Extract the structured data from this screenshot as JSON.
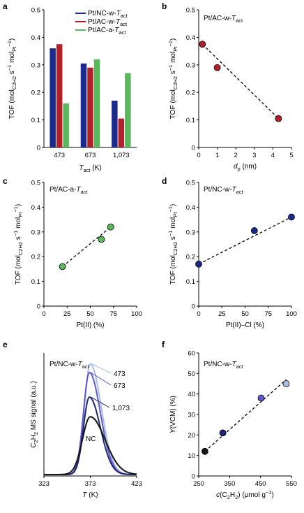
{
  "chart_data": [
    {
      "panel": "a",
      "type": "bar",
      "xlabel": "T_act (K)",
      "ylabel": "TOF (mol_C2H2 s−1 mol_Pt−1)",
      "categories": [
        "473",
        "673",
        "1,073"
      ],
      "ylim": [
        0,
        0.5
      ],
      "yticks": [
        "0",
        "0.1",
        "0.2",
        "0.3",
        "0.4",
        "0.5"
      ],
      "series": [
        {
          "name": "Pt/NC-w-T_act",
          "color": "#1c2a8c",
          "values": [
            0.36,
            0.305,
            0.17
          ]
        },
        {
          "name": "Pt/AC-w-T_act",
          "color": "#b3202a",
          "values": [
            0.375,
            0.29,
            0.105
          ]
        },
        {
          "name": "Pt/AC-a-T_act",
          "color": "#5cb85c",
          "values": [
            0.16,
            0.32,
            0.27
          ]
        }
      ],
      "legend": "top-right"
    },
    {
      "panel": "b",
      "type": "scatter",
      "title": "Pt/AC-w-T_act",
      "xlabel": "d_p (nm)",
      "ylabel": "TOF (mol_C2H2 s−1 mol_Pt−1)",
      "xlim": [
        0,
        5
      ],
      "ylim": [
        0,
        0.5
      ],
      "xticks": [
        "0",
        "1",
        "2",
        "3",
        "4",
        "5"
      ],
      "yticks": [
        "0",
        "0.1",
        "0.2",
        "0.3",
        "0.4",
        "0.5"
      ],
      "color": "#b3202a",
      "x": [
        0.2,
        1.0,
        4.3
      ],
      "y": [
        0.375,
        0.29,
        0.105
      ],
      "fit": {
        "x": [
          0.2,
          4.3
        ],
        "y": [
          0.375,
          0.105
        ]
      }
    },
    {
      "panel": "c",
      "type": "scatter",
      "title": "Pt/AC-a-T_act",
      "xlabel": "Pt(II) (%)",
      "ylabel": "TOF (mol_C2H2 s−1 mol_Pt−1)",
      "xlim": [
        0,
        100
      ],
      "ylim": [
        0,
        0.5
      ],
      "xticks": [
        "0",
        "25",
        "50",
        "75",
        "100"
      ],
      "yticks": [
        "0",
        "0.1",
        "0.2",
        "0.3",
        "0.4",
        "0.5"
      ],
      "color": "#5cb85c",
      "x": [
        20,
        62,
        72
      ],
      "y": [
        0.16,
        0.27,
        0.32
      ],
      "fit": {
        "x": [
          20,
          72
        ],
        "y": [
          0.16,
          0.32
        ]
      }
    },
    {
      "panel": "d",
      "type": "scatter",
      "title": "Pt/NC-w-T_act",
      "xlabel": "Pt(II)–Cl (%)",
      "ylabel": "TOF (mol_C2H2 s−1 mol_Pt−1)",
      "xlim": [
        0,
        100
      ],
      "ylim": [
        0,
        0.5
      ],
      "xticks": [
        "0",
        "25",
        "50",
        "75",
        "100"
      ],
      "yticks": [
        "0",
        "0.1",
        "0.2",
        "0.3",
        "0.4",
        "0.5"
      ],
      "color": "#1c2a8c",
      "x": [
        0,
        60,
        100
      ],
      "y": [
        0.17,
        0.305,
        0.36
      ],
      "fit": {
        "x": [
          0,
          100
        ],
        "y": [
          0.17,
          0.36
        ]
      }
    },
    {
      "panel": "e",
      "type": "line",
      "title": "Pt/NC-w-T_act",
      "xlabel": "T (K)",
      "ylabel": "C2H2 MS signal (a.u.)",
      "xlim": [
        323,
        423
      ],
      "xticks": [
        "323",
        "373",
        "423"
      ],
      "ylim": [
        0,
        1
      ],
      "curve_x_start": 340,
      "series": [
        {
          "name": "473",
          "color": "#a7bfe4",
          "peak_x": 373,
          "peak_y": 0.9,
          "width": 12
        },
        {
          "name": "673",
          "color": "#5f57c9",
          "peak_x": 372,
          "peak_y": 0.83,
          "width": 12
        },
        {
          "name": "1,073",
          "color": "#1f2671",
          "peak_x": 372,
          "peak_y": 0.63,
          "width": 12
        },
        {
          "name": "NC",
          "color": "#141414",
          "peak_x": 373,
          "peak_y": 0.47,
          "width": 16
        }
      ]
    },
    {
      "panel": "f",
      "type": "scatter",
      "title": "Pt/NC-w-T_act",
      "xlabel": "c(C2H2) (μmol g−1)",
      "ylabel": "Y(VCM) (%)",
      "xlim": [
        250,
        550
      ],
      "ylim": [
        0,
        60
      ],
      "xticks": [
        "250",
        "350",
        "450",
        "550"
      ],
      "yticks": [
        "0",
        "10",
        "20",
        "30",
        "40",
        "50",
        "60"
      ],
      "x": [
        270,
        328,
        452,
        533
      ],
      "y": [
        12,
        21,
        38,
        45
      ],
      "colors": [
        "#141414",
        "#1f2671",
        "#5f57c9",
        "#a7bfe4"
      ],
      "fit": {
        "x": [
          270,
          533
        ],
        "y": [
          12,
          47
        ]
      }
    }
  ]
}
